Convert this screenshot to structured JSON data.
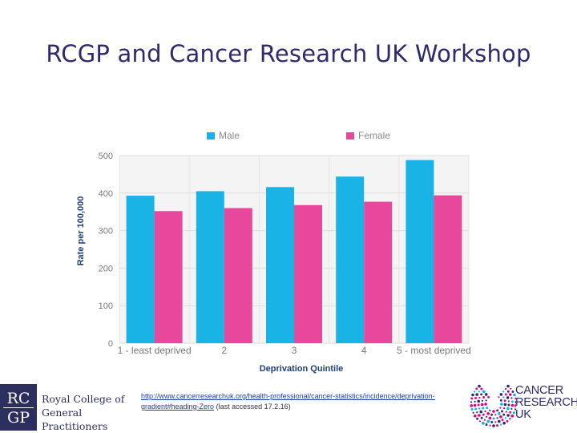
{
  "slide": {
    "title": "RCGP and Cancer Research UK Workshop"
  },
  "chart_data": {
    "type": "bar",
    "title": "",
    "xlabel": "Deprivation Quintile",
    "ylabel": "Rate per 100,000",
    "categories": [
      "1 - least deprived",
      "2",
      "3",
      "4",
      "5 - most deprived"
    ],
    "series": [
      {
        "name": "Male",
        "color": "#1ab3e6",
        "values": [
          393,
          405,
          416,
          444,
          488
        ]
      },
      {
        "name": "Female",
        "color": "#e8489c",
        "values": [
          352,
          360,
          368,
          377,
          394
        ]
      }
    ],
    "ylim": [
      0,
      500
    ],
    "yticks": [
      0,
      100,
      200,
      300,
      400,
      500
    ],
    "grid": true,
    "legend_position": "top"
  },
  "source": {
    "link_text": "http://www.cancerresearchuk.org/health-professional/cancer-statistics/incidence/deprivation-gradient#heading-Zero",
    "note": " (last accessed 17.2.16)"
  },
  "logos": {
    "rcgp_mark_top": "RC",
    "rcgp_mark_bottom": "GP",
    "rcgp_name_line1": "Royal College of",
    "rcgp_name_line2": "General Practitioners",
    "cruk_line1": "CANCER",
    "cruk_line2": "RESEARCH",
    "cruk_line3": "UK",
    "rcgp_color": "#2c2f5e",
    "cruk_color": "#2e2a6b"
  }
}
